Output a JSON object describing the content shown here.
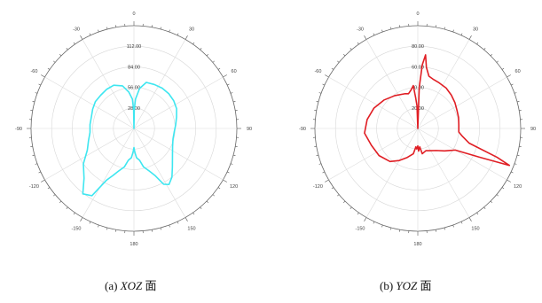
{
  "chart_data": [
    {
      "type": "polar-line",
      "caption_prefix": "(a) ",
      "caption_italic": "XOZ",
      "caption_suffix": " 面",
      "angle_ticks": [
        0,
        30,
        60,
        90,
        120,
        150,
        180,
        -150,
        -120,
        -90,
        -60,
        -30
      ],
      "angle_labels": [
        "0",
        "30",
        "60",
        "90",
        "120",
        "150",
        "180",
        "-150",
        "-120",
        "-90",
        "-60",
        "-30"
      ],
      "radial_ticks": [
        "28.00",
        "56.00",
        "84.00",
        "112.00"
      ],
      "rmax": 140,
      "color": "#3EE6F0",
      "series": [
        {
          "theta": [
            0,
            1,
            3,
            8,
            15,
            25,
            35,
            45,
            55,
            65,
            75,
            85,
            95,
            105,
            115,
            125,
            135,
            142,
            148,
            152,
            156,
            160,
            166,
            170,
            175,
            178,
            180,
            182,
            185,
            190,
            194,
            200,
            204,
            208,
            212,
            218,
            225,
            235,
            245,
            255,
            265,
            275,
            285,
            295,
            305,
            315,
            325,
            335,
            345,
            352,
            357,
            359,
            360
          ],
          "r": [
            0,
            25,
            40,
            55,
            65,
            66,
            67,
            67,
            66,
            64,
            60,
            57,
            55,
            55,
            58,
            64,
            74,
            84,
            90,
            86,
            70,
            62,
            54,
            44,
            40,
            32,
            26,
            32,
            40,
            44,
            54,
            62,
            70,
            80,
            108,
            113,
            96,
            84,
            70,
            64,
            60,
            60,
            60,
            62,
            64,
            64,
            65,
            65,
            60,
            50,
            40,
            25,
            0
          ]
        }
      ]
    },
    {
      "type": "polar-line",
      "caption_prefix": "(b) ",
      "caption_italic": "YOZ",
      "caption_suffix": " 面",
      "angle_ticks": [
        0,
        30,
        60,
        90,
        120,
        150,
        180,
        -150,
        -120,
        -90,
        -60,
        -30
      ],
      "angle_labels": [
        "0",
        "30",
        "60",
        "90",
        "120",
        "150",
        "180",
        "-150",
        "-120",
        "-90",
        "-60",
        "-30"
      ],
      "radial_ticks": [
        "20.00",
        "40.00",
        "60.00",
        "80.00"
      ],
      "rmax": 100,
      "color": "#E01E24",
      "series": [
        {
          "theta": [
            0,
            2,
            4,
            6,
            8,
            12,
            18,
            25,
            35,
            45,
            55,
            65,
            75,
            85,
            95,
            100,
            106,
            110,
            112,
            115,
            120,
            130,
            140,
            150,
            160,
            170,
            174,
            178,
            180,
            183,
            186,
            190,
            200,
            210,
            220,
            235,
            250,
            265,
            280,
            295,
            310,
            325,
            340,
            345,
            350,
            354,
            356,
            358,
            360
          ],
          "r": [
            0,
            40,
            62,
            72,
            60,
            52,
            50,
            49,
            48,
            46,
            44,
            42,
            41,
            40,
            40,
            44,
            52,
            82,
            96,
            66,
            42,
            34,
            28,
            25,
            23,
            25,
            18,
            22,
            17,
            20,
            18,
            25,
            30,
            36,
            42,
            46,
            48,
            52,
            50,
            47,
            43,
            39,
            36,
            35,
            38,
            42,
            30,
            22,
            0
          ]
        }
      ]
    }
  ]
}
